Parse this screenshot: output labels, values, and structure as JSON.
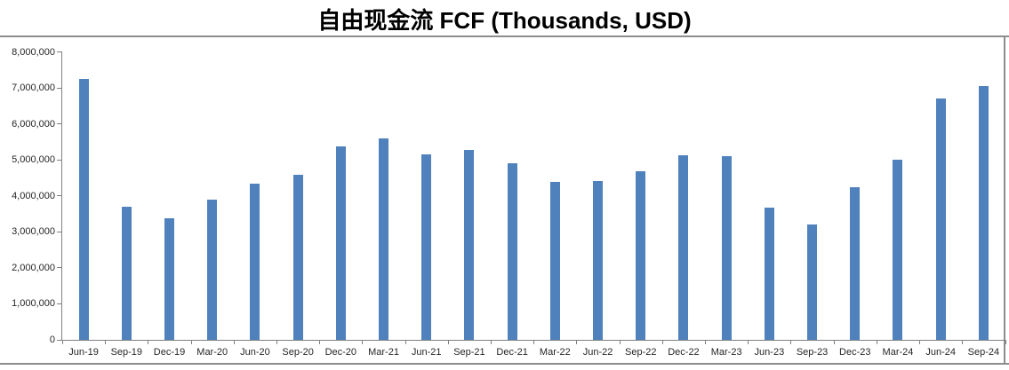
{
  "chart_data": {
    "type": "bar",
    "title": "自由现金流 FCF (Thousands, USD)",
    "xlabel": "",
    "ylabel": "",
    "categories": [
      "Jun-19",
      "Sep-19",
      "Dec-19",
      "Mar-20",
      "Jun-20",
      "Sep-20",
      "Dec-20",
      "Mar-21",
      "Jun-21",
      "Sep-21",
      "Dec-21",
      "Mar-22",
      "Jun-22",
      "Sep-22",
      "Dec-22",
      "Mar-23",
      "Jun-23",
      "Sep-23",
      "Dec-23",
      "Mar-24",
      "Jun-24",
      "Sep-24"
    ],
    "values": [
      7250000,
      3700000,
      3380000,
      3890000,
      4350000,
      4590000,
      5370000,
      5600000,
      5150000,
      5270000,
      4900000,
      4390000,
      4410000,
      4680000,
      5130000,
      5100000,
      3670000,
      3210000,
      4240000,
      5000000,
      6700000,
      7040000
    ],
    "ylim": [
      0,
      8000000
    ],
    "y_tick_step": 1000000,
    "y_tick_labels": [
      "0",
      "1,000,000",
      "2,000,000",
      "3,000,000",
      "4,000,000",
      "5,000,000",
      "6,000,000",
      "7,000,000",
      "8,000,000"
    ],
    "grid": "off",
    "legend": "none",
    "colors": {
      "bar": "#4F81BD",
      "axis": "#808080",
      "border": "#8C8C8C",
      "labels": "#262626",
      "title": "#000000",
      "background": "#FFFFFF"
    }
  }
}
